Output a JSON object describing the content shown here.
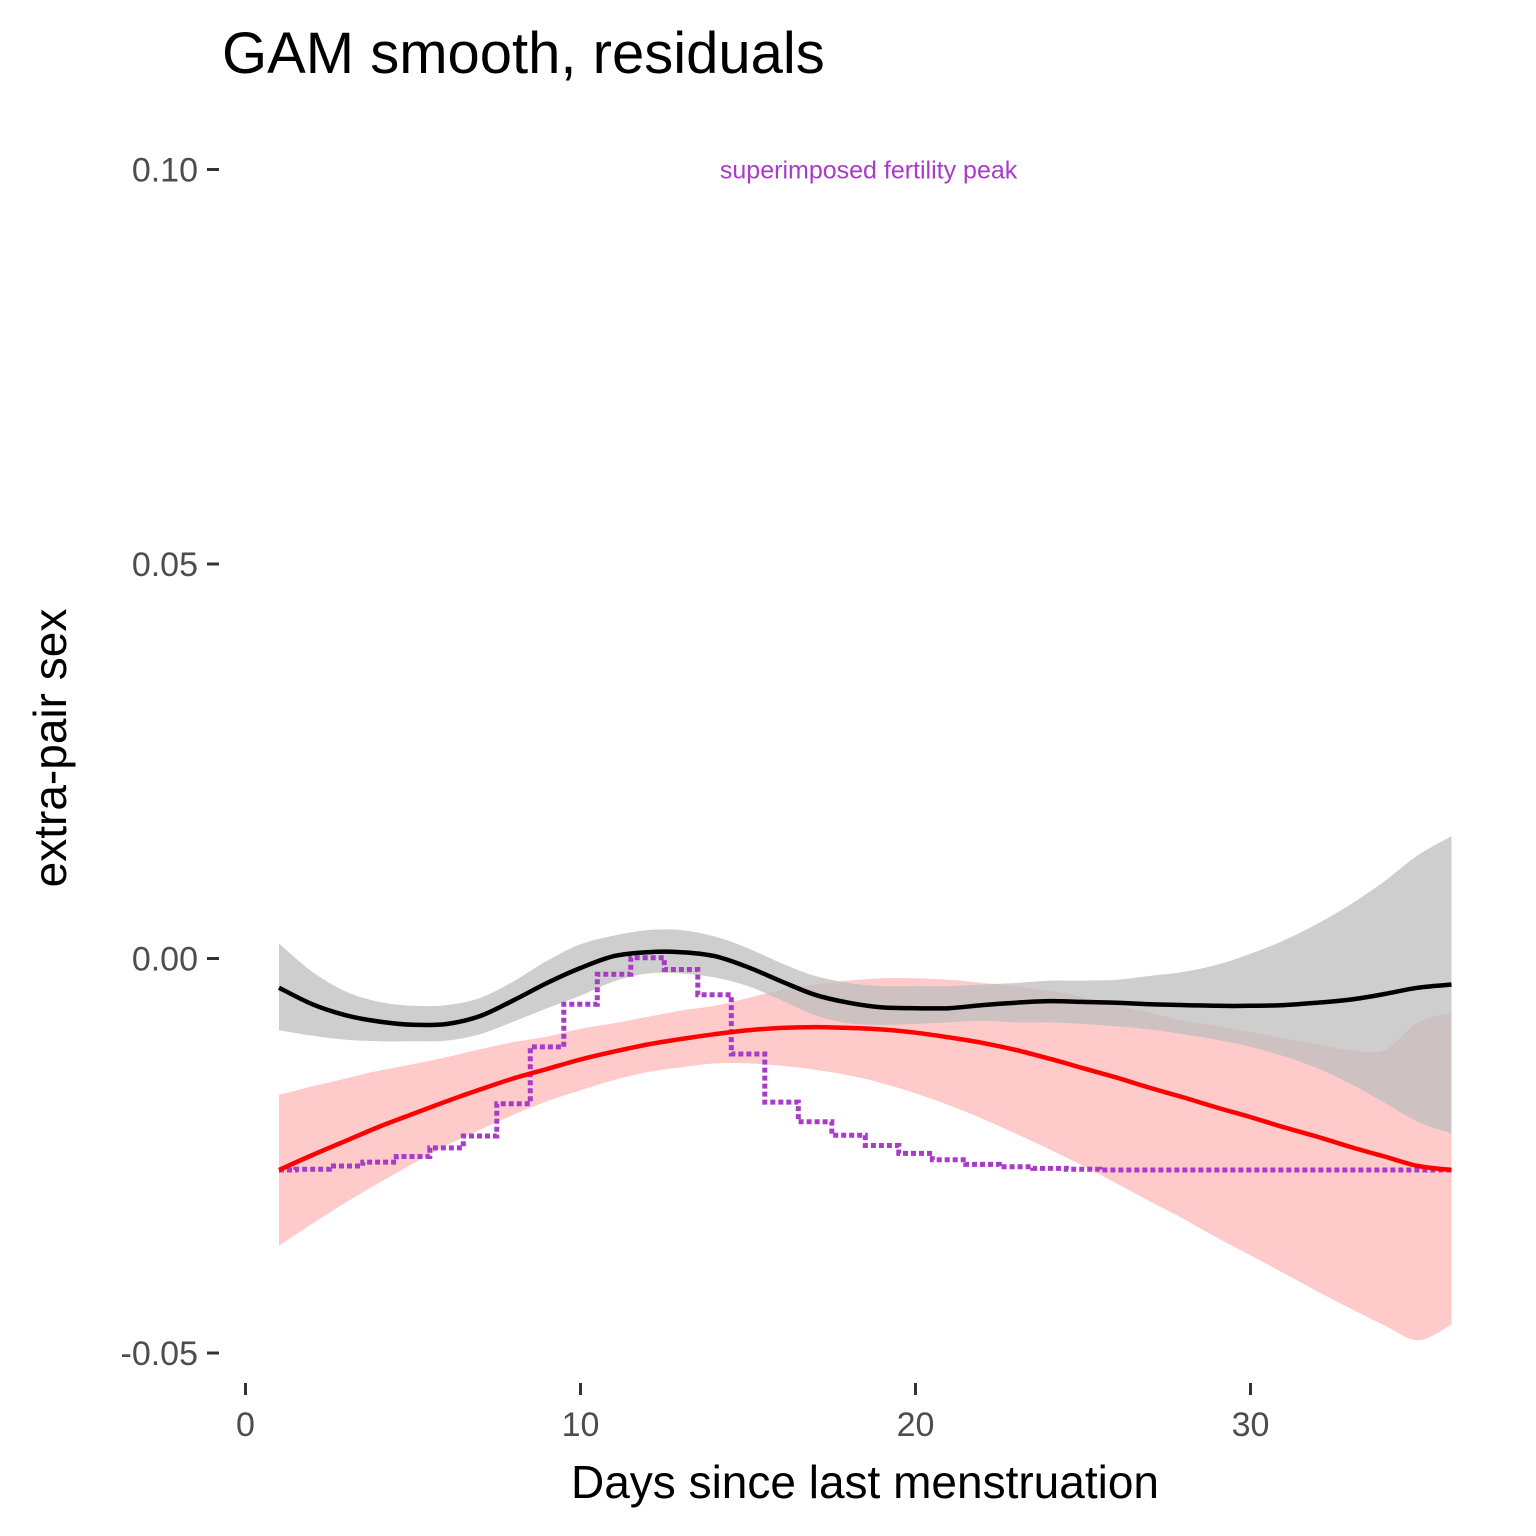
{
  "chart_data": {
    "type": "line",
    "title": "GAM smooth, residuals",
    "xlabel": "Days since last menstruation",
    "ylabel": "extra-pair sex",
    "xlim": [
      0,
      36
    ],
    "ylim": [
      -0.05,
      0.1
    ],
    "x_ticks": [
      0,
      10,
      20,
      30
    ],
    "x_tick_labels": [
      "0",
      "10",
      "20",
      "30"
    ],
    "y_ticks": [
      -0.05,
      0.0,
      0.05,
      0.1
    ],
    "y_tick_labels": [
      "-0.05",
      "0.00",
      "0.05",
      "0.10"
    ],
    "grid": false,
    "annotation": {
      "text": "superimposed fertility peak",
      "x": 18.6,
      "y": 0.1,
      "color": "#a83cc8"
    },
    "colors": {
      "gam_line": "#000000",
      "gam_band": "#bdbdbd",
      "fit_line": "#ff0000",
      "fit_band": "#ffb3b3",
      "fertility": "#a83cc8"
    },
    "series": [
      {
        "key": "gam",
        "style": "solid",
        "points": [
          [
            1,
            -0.0037
          ],
          [
            2,
            -0.0058
          ],
          [
            3,
            -0.0072
          ],
          [
            4,
            -0.008
          ],
          [
            5,
            -0.0084
          ],
          [
            6,
            -0.0083
          ],
          [
            7,
            -0.0073
          ],
          [
            8,
            -0.0053
          ],
          [
            9,
            -0.0031
          ],
          [
            10,
            -0.0012
          ],
          [
            11,
            0.0003
          ],
          [
            12,
            0.0008
          ],
          [
            13,
            0.0008
          ],
          [
            14,
            0.0003
          ],
          [
            15,
            -0.0011
          ],
          [
            16,
            -0.0029
          ],
          [
            17,
            -0.0046
          ],
          [
            18,
            -0.0056
          ],
          [
            19,
            -0.0062
          ],
          [
            20,
            -0.0063
          ],
          [
            21,
            -0.0063
          ],
          [
            22,
            -0.0059
          ],
          [
            23,
            -0.0056
          ],
          [
            24,
            -0.0054
          ],
          [
            25,
            -0.0055
          ],
          [
            26,
            -0.0056
          ],
          [
            27,
            -0.0058
          ],
          [
            28,
            -0.0059
          ],
          [
            29,
            -0.006
          ],
          [
            30,
            -0.006
          ],
          [
            31,
            -0.0059
          ],
          [
            32,
            -0.0056
          ],
          [
            33,
            -0.0052
          ],
          [
            34,
            -0.0045
          ],
          [
            35,
            -0.0037
          ],
          [
            36,
            -0.0033
          ]
        ],
        "band": [
          [
            1,
            -0.0091,
            0.0019
          ],
          [
            2,
            -0.0098,
            -0.0017
          ],
          [
            3,
            -0.0103,
            -0.0042
          ],
          [
            4,
            -0.0105,
            -0.0055
          ],
          [
            5,
            -0.0105,
            -0.006
          ],
          [
            6,
            -0.0104,
            -0.0059
          ],
          [
            7,
            -0.0096,
            -0.005
          ],
          [
            8,
            -0.008,
            -0.0029
          ],
          [
            9,
            -0.0063,
            -0.0003
          ],
          [
            10,
            -0.0047,
            0.0018
          ],
          [
            11,
            -0.0029,
            0.0029
          ],
          [
            12,
            -0.0019,
            0.0036
          ],
          [
            13,
            -0.0019,
            0.0036
          ],
          [
            14,
            -0.0024,
            0.0028
          ],
          [
            15,
            -0.0035,
            0.0013
          ],
          [
            16,
            -0.0053,
            -0.0006
          ],
          [
            17,
            -0.0072,
            -0.0022
          ],
          [
            18,
            -0.0082,
            -0.0031
          ],
          [
            19,
            -0.0084,
            -0.0035
          ],
          [
            20,
            -0.0083,
            -0.0035
          ],
          [
            21,
            -0.0081,
            -0.0035
          ],
          [
            22,
            -0.0079,
            -0.0033
          ],
          [
            23,
            -0.0081,
            -0.0031
          ],
          [
            24,
            -0.0081,
            -0.0028
          ],
          [
            25,
            -0.0083,
            -0.0028
          ],
          [
            26,
            -0.0086,
            -0.0027
          ],
          [
            27,
            -0.009,
            -0.0022
          ],
          [
            28,
            -0.0096,
            -0.0017
          ],
          [
            29,
            -0.0103,
            -0.0008
          ],
          [
            30,
            -0.0112,
            0.0006
          ],
          [
            31,
            -0.0124,
            0.0023
          ],
          [
            32,
            -0.0139,
            0.0044
          ],
          [
            33,
            -0.0159,
            0.0069
          ],
          [
            34,
            -0.0183,
            0.0098
          ],
          [
            35,
            -0.0207,
            0.0131
          ],
          [
            36,
            -0.0222,
            0.0155
          ]
        ]
      },
      {
        "key": "fit",
        "style": "solid",
        "points": [
          [
            1,
            -0.0268
          ],
          [
            2,
            -0.0249
          ],
          [
            3,
            -0.0231
          ],
          [
            4,
            -0.0213
          ],
          [
            5,
            -0.0197
          ],
          [
            6,
            -0.0181
          ],
          [
            7,
            -0.0166
          ],
          [
            8,
            -0.0152
          ],
          [
            9,
            -0.014
          ],
          [
            10,
            -0.0128
          ],
          [
            11,
            -0.0118
          ],
          [
            12,
            -0.0109
          ],
          [
            13,
            -0.0102
          ],
          [
            14,
            -0.0096
          ],
          [
            15,
            -0.0091
          ],
          [
            16,
            -0.0088
          ],
          [
            17,
            -0.0087
          ],
          [
            18,
            -0.0088
          ],
          [
            19,
            -0.009
          ],
          [
            20,
            -0.0094
          ],
          [
            21,
            -0.01
          ],
          [
            22,
            -0.0107
          ],
          [
            23,
            -0.0116
          ],
          [
            24,
            -0.0127
          ],
          [
            25,
            -0.0139
          ],
          [
            26,
            -0.0151
          ],
          [
            27,
            -0.0164
          ],
          [
            28,
            -0.0176
          ],
          [
            29,
            -0.0189
          ],
          [
            30,
            -0.0201
          ],
          [
            31,
            -0.0214
          ],
          [
            32,
            -0.0226
          ],
          [
            33,
            -0.0239
          ],
          [
            34,
            -0.0251
          ],
          [
            35,
            -0.0263
          ],
          [
            36,
            -0.0268
          ]
        ],
        "band": [
          [
            1,
            -0.0364,
            -0.0173
          ],
          [
            2,
            -0.0336,
            -0.0162
          ],
          [
            3,
            -0.0309,
            -0.0152
          ],
          [
            4,
            -0.0284,
            -0.0142
          ],
          [
            5,
            -0.026,
            -0.0134
          ],
          [
            6,
            -0.0237,
            -0.0125
          ],
          [
            7,
            -0.0217,
            -0.0115
          ],
          [
            8,
            -0.0198,
            -0.0106
          ],
          [
            9,
            -0.0181,
            -0.0099
          ],
          [
            10,
            -0.0167,
            -0.0089
          ],
          [
            11,
            -0.0154,
            -0.0082
          ],
          [
            12,
            -0.0144,
            -0.0074
          ],
          [
            13,
            -0.0138,
            -0.0066
          ],
          [
            14,
            -0.0133,
            -0.006
          ],
          [
            15,
            -0.0133,
            -0.005
          ],
          [
            16,
            -0.0136,
            -0.004
          ],
          [
            17,
            -0.0141,
            -0.0033
          ],
          [
            18,
            -0.0148,
            -0.0028
          ],
          [
            19,
            -0.0158,
            -0.0025
          ],
          [
            20,
            -0.0171,
            -0.0025
          ],
          [
            21,
            -0.0186,
            -0.0027
          ],
          [
            22,
            -0.0203,
            -0.0031
          ],
          [
            23,
            -0.0222,
            -0.0035
          ],
          [
            24,
            -0.0242,
            -0.0041
          ],
          [
            25,
            -0.0263,
            -0.0049
          ],
          [
            26,
            -0.0285,
            -0.0059
          ],
          [
            27,
            -0.0308,
            -0.0069
          ],
          [
            28,
            -0.033,
            -0.0079
          ],
          [
            29,
            -0.0354,
            -0.0085
          ],
          [
            30,
            -0.0376,
            -0.0093
          ],
          [
            31,
            -0.0399,
            -0.0101
          ],
          [
            32,
            -0.0422,
            -0.0109
          ],
          [
            33,
            -0.0444,
            -0.0116
          ],
          [
            34,
            -0.0465,
            -0.0116
          ],
          [
            35,
            -0.0484,
            -0.0081
          ],
          [
            36,
            -0.0464,
            -0.0069
          ]
        ]
      },
      {
        "key": "fertility",
        "style": "dotted",
        "points": [
          [
            1,
            -0.0268
          ],
          [
            2,
            -0.0267
          ],
          [
            3,
            -0.0263
          ],
          [
            4,
            -0.0258
          ],
          [
            5,
            -0.0251
          ],
          [
            6,
            -0.024
          ],
          [
            7,
            -0.0225
          ],
          [
            8,
            -0.0184
          ],
          [
            9,
            -0.0112
          ],
          [
            10,
            -0.0058
          ],
          [
            11,
            -0.002
          ],
          [
            12,
            0.0001
          ],
          [
            13,
            -0.0014
          ],
          [
            14,
            -0.0046
          ],
          [
            15,
            -0.0121
          ],
          [
            16,
            -0.0182
          ],
          [
            17,
            -0.0207
          ],
          [
            18,
            -0.0224
          ],
          [
            19,
            -0.0237
          ],
          [
            20,
            -0.0247
          ],
          [
            21,
            -0.0255
          ],
          [
            22,
            -0.0261
          ],
          [
            23,
            -0.0264
          ],
          [
            24,
            -0.0266
          ],
          [
            25,
            -0.0267
          ],
          [
            26,
            -0.0268
          ],
          [
            27,
            -0.0268
          ],
          [
            28,
            -0.0268
          ],
          [
            29,
            -0.0268
          ],
          [
            30,
            -0.0268
          ],
          [
            31,
            -0.0268
          ],
          [
            32,
            -0.0268
          ],
          [
            33,
            -0.0268
          ],
          [
            34,
            -0.0268
          ],
          [
            35,
            -0.0268
          ],
          [
            36,
            -0.0268
          ]
        ]
      }
    ]
  }
}
